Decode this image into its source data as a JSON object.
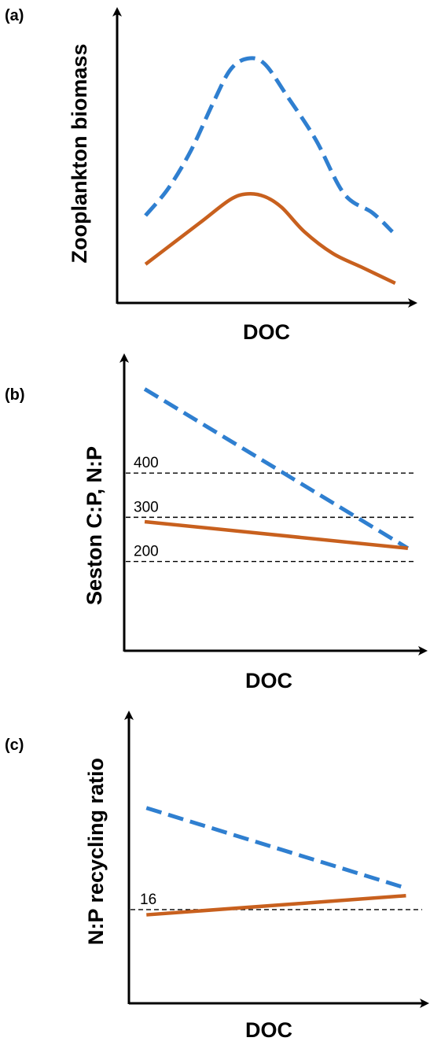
{
  "colors": {
    "blue_series": "#2f7fd0",
    "orange_series": "#c8601e",
    "axis": "#000000",
    "reference": "#000000"
  },
  "chart_data": [
    {
      "panel": "(a)",
      "type": "line",
      "xlabel": "DOC",
      "ylabel": "Zooplankton biomass",
      "x_ticks_shown": false,
      "y_ticks_shown": false,
      "xlim": [
        0,
        100
      ],
      "ylim": [
        0,
        100
      ],
      "series": [
        {
          "style": "dashed",
          "color": "blue",
          "x": [
            10,
            18,
            26,
            34,
            40,
            46,
            52,
            60,
            70,
            80,
            90,
            97
          ],
          "y": [
            32,
            42,
            56,
            74,
            86,
            90,
            88,
            76,
            60,
            40,
            33,
            26
          ]
        },
        {
          "style": "solid",
          "color": "orange",
          "x": [
            10,
            20,
            30,
            40,
            46,
            52,
            58,
            66,
            76,
            86,
            98
          ],
          "y": [
            14,
            22,
            30,
            38,
            40,
            39,
            35,
            26,
            18,
            13,
            7
          ]
        }
      ],
      "reference_lines": []
    },
    {
      "panel": "(b)",
      "type": "line",
      "xlabel": "DOC",
      "ylabel": "Seston C:P, N:P",
      "x_ticks_shown": false,
      "y_ticks_shown": false,
      "xlim": [
        0,
        100
      ],
      "ylim": [
        0,
        660
      ],
      "series": [
        {
          "style": "dashed",
          "color": "blue",
          "x": [
            7,
            97
          ],
          "y": [
            590,
            230
          ]
        },
        {
          "style": "solid",
          "color": "orange",
          "x": [
            7,
            97
          ],
          "y": [
            290,
            230
          ]
        }
      ],
      "reference_lines": [
        {
          "label": "400",
          "y": 400
        },
        {
          "label": "300",
          "y": 300
        },
        {
          "label": "200",
          "y": 200
        }
      ]
    },
    {
      "panel": "(c)",
      "type": "line",
      "xlabel": "DOC",
      "ylabel": "N:P recycling ratio",
      "x_ticks_shown": false,
      "y_ticks_shown": false,
      "xlim": [
        0,
        100
      ],
      "ylim": [
        0,
        50
      ],
      "series": [
        {
          "style": "dashed",
          "color": "blue",
          "x": [
            6,
            95
          ],
          "y": [
            33.5,
            19.7
          ]
        },
        {
          "style": "solid",
          "color": "orange",
          "x": [
            6,
            95
          ],
          "y": [
            15.1,
            18.4
          ]
        }
      ],
      "reference_lines": [
        {
          "label": "16",
          "y": 16
        }
      ]
    }
  ]
}
